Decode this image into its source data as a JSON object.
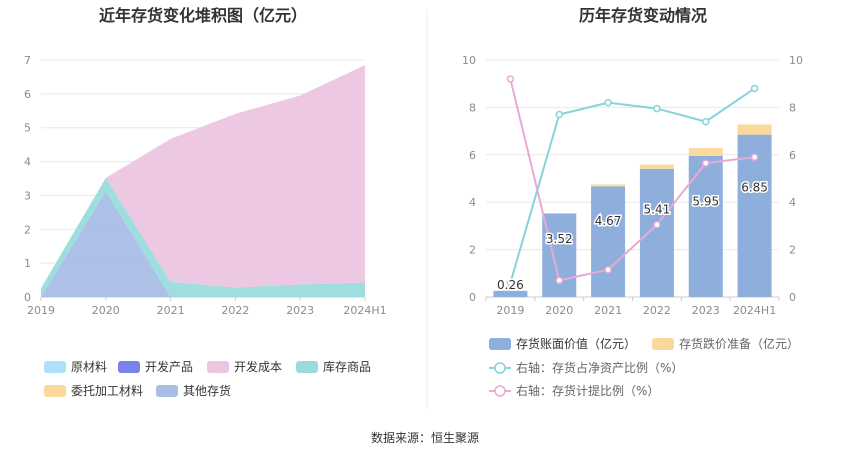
{
  "source_label": "数据来源：恒生聚源",
  "chart_data": [
    {
      "type": "area",
      "stacked": true,
      "title": "近年存货变化堆积图（亿元）",
      "categories": [
        "2019",
        "2020",
        "2021",
        "2022",
        "2023",
        "2024H1"
      ],
      "ylim": [
        0,
        7
      ],
      "yticks": [
        0,
        1,
        2,
        3,
        4,
        5,
        6,
        7
      ],
      "grid": true,
      "legend_position": "bottom",
      "series": [
        {
          "name": "原材料",
          "color": "#aee0f7",
          "values": [
            0,
            0,
            0,
            0,
            0,
            0
          ]
        },
        {
          "name": "开发产品",
          "color": "#7b83eb",
          "values": [
            0,
            0,
            0,
            0,
            0,
            0
          ]
        },
        {
          "name": "开发成本",
          "color": "#ebc5e2",
          "values": [
            0,
            0,
            4.22,
            5.13,
            5.58,
            6.42
          ]
        },
        {
          "name": "库存商品",
          "color": "#9adcdc",
          "values": [
            0.26,
            0.4,
            0.45,
            0.28,
            0.37,
            0.43
          ]
        },
        {
          "name": "委托加工材料",
          "color": "#fcd99a",
          "values": [
            0,
            0,
            0,
            0,
            0,
            0
          ]
        },
        {
          "name": "其他存货",
          "color": "#a9bde6",
          "values": [
            0,
            3.12,
            0,
            0,
            0,
            0
          ]
        }
      ]
    },
    {
      "type": "bar",
      "title": "历年存货变动情况",
      "categories": [
        "2019",
        "2020",
        "2021",
        "2022",
        "2023",
        "2024H1"
      ],
      "ylim": [
        0,
        10
      ],
      "yticks": [
        0,
        2,
        4,
        6,
        8,
        10
      ],
      "y2lim": [
        0,
        10
      ],
      "y2ticks": [
        0,
        2,
        4,
        6,
        8,
        10
      ],
      "grid": true,
      "legend_position": "bottom",
      "bars": [
        {
          "name": "存货账面价值（亿元）",
          "color": "#8eaedb",
          "values": [
            0.26,
            3.52,
            4.67,
            5.41,
            5.95,
            6.85
          ],
          "labels": [
            "0.26",
            "3.52",
            "4.67",
            "5.41",
            "5.95",
            "6.85"
          ]
        },
        {
          "name": "存货跌价准备（亿元）",
          "color": "#fbd89b",
          "values": [
            0,
            0.02,
            0.08,
            0.18,
            0.33,
            0.43
          ]
        }
      ],
      "lines": [
        {
          "name": "右轴：存货占净资产比例（%）",
          "color": "#86d3db",
          "values": [
            0.6,
            7.7,
            8.2,
            7.95,
            7.4,
            8.8
          ]
        },
        {
          "name": "右轴：存货计提比例（%）",
          "color": "#e8aad5",
          "values": [
            9.2,
            0.7,
            1.15,
            3.05,
            5.65,
            5.9
          ]
        }
      ]
    }
  ]
}
